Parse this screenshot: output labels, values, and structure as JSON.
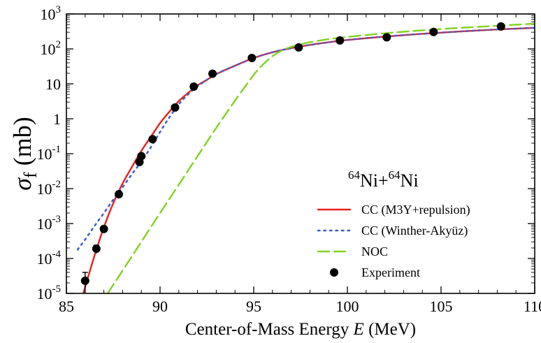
{
  "chart_data": {
    "type": "line",
    "xlabel_prefix": "Center-of-Mass Energy ",
    "xlabel_var": "E",
    "xlabel_suffix": " (MeV)",
    "ylabel_symbol": "σ",
    "ylabel_sub": "f",
    "ylabel_unit": " (mb)",
    "xlim": [
      85,
      110
    ],
    "ylim": [
      1e-05,
      1000
    ],
    "yscale": "log",
    "x_ticks": [
      85,
      90,
      95,
      100,
      105,
      110
    ],
    "x_tick_labels": [
      "85",
      "90",
      "95",
      "100",
      "105",
      "110"
    ],
    "y_ticks": [
      1e-05,
      0.0001,
      0.001,
      0.01,
      0.1,
      1,
      10,
      100,
      1000
    ],
    "y_tick_labels": [
      {
        "base": "10",
        "exp": "-5"
      },
      {
        "base": "10",
        "exp": "-4"
      },
      {
        "base": "10",
        "exp": "-3"
      },
      {
        "base": "10",
        "exp": "-2"
      },
      {
        "base": "10",
        "exp": "-1"
      },
      {
        "base": "1",
        "exp": ""
      },
      {
        "base": "10",
        "exp": ""
      },
      {
        "base": "10",
        "exp": "2"
      },
      {
        "base": "10",
        "exp": "3"
      }
    ],
    "annotation": {
      "sup1": "64",
      "el1": "Ni+",
      "sup2": "64",
      "el2": "Ni"
    },
    "legend_position": "bottom-right",
    "series": [
      {
        "name": "CC (M3Y+repulsion)",
        "style": "solid",
        "color": "#e8211c",
        "x": [
          85.9,
          86.5,
          87.0,
          87.5,
          88.0,
          88.5,
          89.0,
          89.5,
          90.0,
          90.5,
          91.0,
          91.5,
          92.0,
          92.5,
          93.0,
          94.0,
          95.0,
          96.0,
          97.0,
          98.0,
          99.0,
          100.0,
          102.0,
          104.0,
          106.0,
          108.0,
          110.0
        ],
        "y": [
          1e-05,
          0.00012,
          0.00078,
          0.0038,
          0.014,
          0.042,
          0.12,
          0.3,
          0.75,
          1.6,
          3.2,
          5.5,
          9.0,
          13.0,
          19.0,
          33.0,
          55.0,
          80.0,
          105.0,
          130.0,
          155.0,
          180.0,
          225.0,
          270.0,
          315.0,
          360.0,
          400.0
        ]
      },
      {
        "name": "CC (Winther-Akyüz)",
        "style": "dotted",
        "color": "#3f5fcf",
        "x": [
          85.6,
          86.0,
          86.5,
          87.0,
          87.5,
          88.0,
          88.5,
          89.0,
          89.5,
          90.0,
          90.5,
          91.0,
          91.5,
          92.0,
          93.0,
          94.0,
          95.0,
          96.0,
          97.0,
          98.0,
          100.0,
          102.0,
          104.0,
          106.0,
          108.0,
          110.0
        ],
        "y": [
          0.00018,
          0.00035,
          0.00085,
          0.002,
          0.0048,
          0.011,
          0.026,
          0.06,
          0.15,
          0.42,
          1.1,
          2.6,
          5.0,
          8.5,
          19.0,
          33.0,
          55.0,
          80.0,
          105.0,
          130.0,
          180.0,
          225.0,
          270.0,
          315.0,
          360.0,
          400.0
        ]
      },
      {
        "name": "NOC",
        "style": "dashed",
        "color": "#7fd321",
        "x": [
          87.2,
          88.0,
          89.0,
          90.0,
          91.0,
          92.0,
          93.0,
          94.0,
          95.0,
          95.5,
          96.0,
          96.5,
          97.0,
          97.5,
          98.0,
          99.0,
          100.0,
          102.0,
          104.0,
          106.0,
          108.0,
          110.0
        ],
        "y": [
          1e-05,
          4.5e-05,
          0.0003,
          0.002,
          0.013,
          0.085,
          0.55,
          3.3,
          18.0,
          36.0,
          62.0,
          90.0,
          115.0,
          135.0,
          155.0,
          190.0,
          220.0,
          280.0,
          340.0,
          400.0,
          460.0,
          530.0
        ]
      }
    ],
    "experiment": {
      "name": "Experiment",
      "color": "#000000",
      "points": [
        {
          "x": 86.0,
          "y": 2.3e-05,
          "err_lo": 1.3e-05,
          "err_hi": 1.7e-05
        },
        {
          "x": 86.6,
          "y": 0.00019,
          "err_lo": 5e-05,
          "err_hi": 5e-05
        },
        {
          "x": 87.0,
          "y": 0.0007,
          "err_lo": 0.00012,
          "err_hi": 0.00012
        },
        {
          "x": 87.8,
          "y": 0.0069,
          "err_lo": 0,
          "err_hi": 0
        },
        {
          "x": 88.9,
          "y": 0.058,
          "err_lo": 0,
          "err_hi": 0
        },
        {
          "x": 89.0,
          "y": 0.085,
          "err_lo": 0,
          "err_hi": 0
        },
        {
          "x": 89.6,
          "y": 0.26,
          "err_lo": 0,
          "err_hi": 0
        },
        {
          "x": 90.8,
          "y": 2.1,
          "err_lo": 0,
          "err_hi": 0
        },
        {
          "x": 91.8,
          "y": 8.3,
          "err_lo": 0,
          "err_hi": 0
        },
        {
          "x": 92.8,
          "y": 19.5,
          "err_lo": 0,
          "err_hi": 0
        },
        {
          "x": 94.9,
          "y": 55.0,
          "err_lo": 0,
          "err_hi": 0
        },
        {
          "x": 97.4,
          "y": 110.0,
          "err_lo": 0,
          "err_hi": 0
        },
        {
          "x": 99.6,
          "y": 175.0,
          "err_lo": 0,
          "err_hi": 0
        },
        {
          "x": 102.1,
          "y": 215.0,
          "err_lo": 0,
          "err_hi": 0
        },
        {
          "x": 104.6,
          "y": 305.0,
          "err_lo": 0,
          "err_hi": 0
        },
        {
          "x": 108.2,
          "y": 440.0,
          "err_lo": 0,
          "err_hi": 0
        }
      ]
    }
  }
}
